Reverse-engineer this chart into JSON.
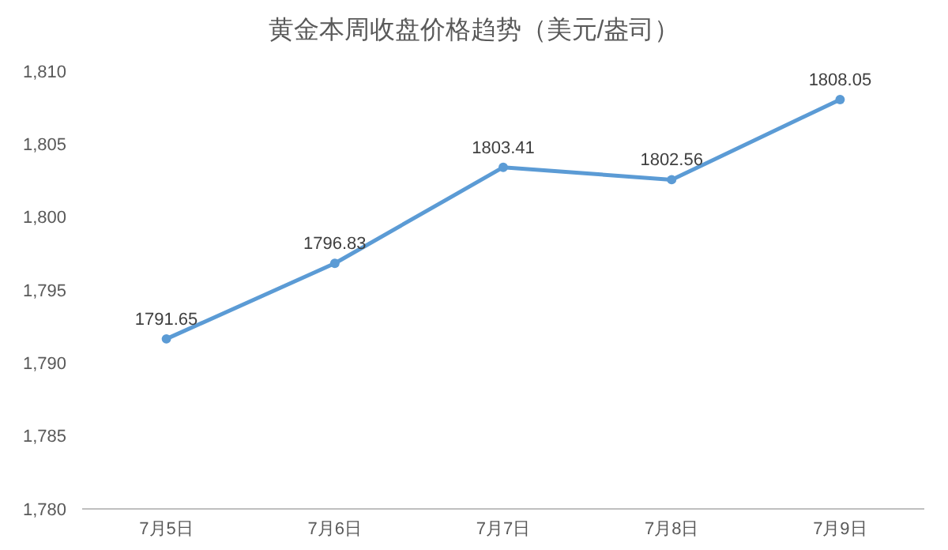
{
  "chart_data": {
    "type": "line",
    "title": "黄金本周收盘价格趋势（美元/盎司）",
    "categories": [
      "7月5日",
      "7月6日",
      "7月7日",
      "7月8日",
      "7月9日"
    ],
    "series": [
      {
        "color": "#5b9bd5",
        "values": [
          1791.65,
          1796.83,
          1803.41,
          1802.56,
          1808.05
        ]
      }
    ],
    "ylim": [
      1780,
      1810
    ],
    "yticks": [
      {
        "value": 1780,
        "label": "1,780"
      },
      {
        "value": 1785,
        "label": "1,785"
      },
      {
        "value": 1790,
        "label": "1,790"
      },
      {
        "value": 1795,
        "label": "1,795"
      },
      {
        "value": 1800,
        "label": "1,800"
      },
      {
        "value": 1805,
        "label": "1,805"
      },
      {
        "value": 1810,
        "label": "1,810"
      }
    ],
    "data_labels": true,
    "marker": "circle",
    "grid": false
  }
}
